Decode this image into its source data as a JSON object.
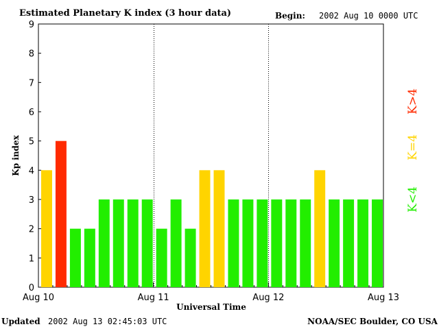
{
  "header": {
    "title": "Estimated Planetary K index (3 hour data)",
    "begin_label": "Begin:",
    "begin_value": "2002 Aug 10 0000 UTC"
  },
  "footer": {
    "updated_label": "Updated",
    "updated_value": "2002 Aug 13 02:45:03 UTC",
    "source": "NOAA/SEC Boulder, CO USA"
  },
  "legend": {
    "high": {
      "label": "K>4",
      "color": "#ff2a00"
    },
    "equal": {
      "label": "K=4",
      "color": "#ffd400"
    },
    "low": {
      "label": "K<4",
      "color": "#22ee00"
    }
  },
  "chart_data": {
    "type": "bar",
    "title": "Estimated Planetary K index (3 hour data)",
    "xlabel": "Universal Time",
    "ylabel": "Kp index",
    "ylim": [
      0,
      9
    ],
    "yticks": [
      "0",
      "1",
      "2",
      "3",
      "4",
      "5",
      "6",
      "7",
      "8",
      "9"
    ],
    "xticks": [
      "Aug 10",
      "Aug 11",
      "Aug 12",
      "Aug 13"
    ],
    "day_separators": true,
    "values": [
      4,
      5,
      2,
      2,
      3,
      3,
      3,
      3,
      2,
      3,
      2,
      4,
      4,
      3,
      3,
      3,
      3,
      3,
      3,
      4,
      3,
      3,
      3,
      3
    ],
    "colors": {
      "below4": "#22ee00",
      "equal4": "#ffd400",
      "above4": "#ff2a00"
    }
  }
}
